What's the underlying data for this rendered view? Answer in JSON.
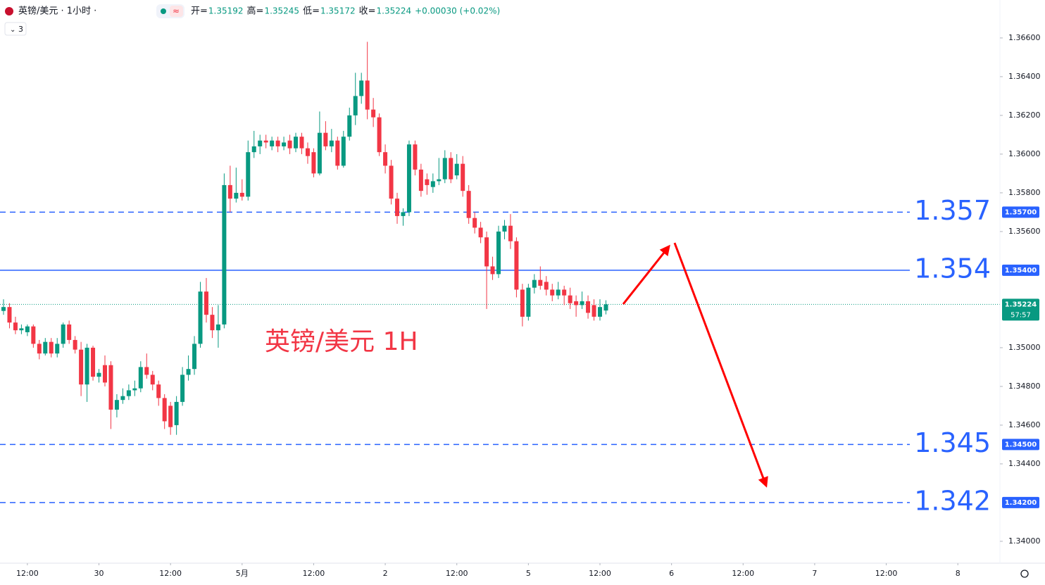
{
  "header": {
    "symbol": "英镑/美元 · 1小时 ·",
    "indicator_count": "3",
    "indicator_icon": "≈",
    "readout": [
      {
        "label": "开=",
        "value": "1.35192"
      },
      {
        "label": "高=",
        "value": "1.35245"
      },
      {
        "label": "低=",
        "value": "1.35172"
      },
      {
        "label": "收=",
        "value": "1.35224"
      }
    ],
    "change": "+0.00030 (+0.02%)"
  },
  "chart_data": {
    "type": "candlestick",
    "annotation": "英镑/美元 1H",
    "up_color": "#089981",
    "down_color": "#f23645",
    "xlim": [
      -0.59,
      167.06
    ],
    "ylim": [
      1.33887,
      1.36796
    ],
    "xticks": [
      {
        "value": 4,
        "label": "12:00"
      },
      {
        "value": 16,
        "label": "30"
      },
      {
        "value": 28,
        "label": "12:00"
      },
      {
        "value": 40,
        "label": "5月"
      },
      {
        "value": 52,
        "label": "12:00"
      },
      {
        "value": 64,
        "label": "2"
      },
      {
        "value": 76,
        "label": "12:00"
      },
      {
        "value": 88,
        "label": "5"
      },
      {
        "value": 100,
        "label": "12:00"
      },
      {
        "value": 112,
        "label": "6"
      },
      {
        "value": 124,
        "label": "12:00"
      },
      {
        "value": 136,
        "label": "7"
      },
      {
        "value": 148,
        "label": "12:00"
      },
      {
        "value": 160,
        "label": "8"
      }
    ],
    "yticks": [
      {
        "value": 1.366,
        "label": "1.36600"
      },
      {
        "value": 1.364,
        "label": "1.36400"
      },
      {
        "value": 1.362,
        "label": "1.36200"
      },
      {
        "value": 1.36,
        "label": "1.36000"
      },
      {
        "value": 1.358,
        "label": "1.35800"
      },
      {
        "value": 1.356,
        "label": "1.35600"
      },
      {
        "value": 1.35,
        "label": "1.35000"
      },
      {
        "value": 1.348,
        "label": "1.34800"
      },
      {
        "value": 1.346,
        "label": "1.34600"
      },
      {
        "value": 1.344,
        "label": "1.34400"
      },
      {
        "value": 1.34,
        "label": "1.34000"
      }
    ],
    "levels": [
      {
        "value": 1.357,
        "label": "1.35700",
        "style": "dashed",
        "color": "#2962ff"
      },
      {
        "value": 1.354,
        "label": "1.35400",
        "style": "solid",
        "color": "#2962ff"
      },
      {
        "value": 1.345,
        "label": "1.34500",
        "style": "dashed",
        "color": "#2962ff"
      },
      {
        "value": 1.342,
        "label": "1.34200",
        "style": "dashed",
        "color": "#2962ff"
      }
    ],
    "current_price": {
      "value": 1.35224,
      "label": "1.35224",
      "countdown": "57:57",
      "color": "#089981"
    },
    "ohlc": [
      [
        1.3519,
        1.3525,
        1.3517,
        1.3521
      ],
      [
        1.3521,
        1.3523,
        1.351,
        1.3513
      ],
      [
        1.3513,
        1.3516,
        1.3507,
        1.3509
      ],
      [
        1.3509,
        1.3512,
        1.3507,
        1.351
      ],
      [
        1.3508,
        1.3512,
        1.3506,
        1.3511
      ],
      [
        1.3511,
        1.3512,
        1.35,
        1.3502
      ],
      [
        1.3502,
        1.3504,
        1.3494,
        1.3497
      ],
      [
        1.3497,
        1.3505,
        1.3496,
        1.3503
      ],
      [
        1.3503,
        1.3505,
        1.3495,
        1.3497
      ],
      [
        1.3497,
        1.3505,
        1.3495,
        1.3502
      ],
      [
        1.3502,
        1.3513,
        1.35,
        1.3512
      ],
      [
        1.3512,
        1.3514,
        1.3502,
        1.3504
      ],
      [
        1.3504,
        1.3506,
        1.3497,
        1.3499
      ],
      [
        1.3499,
        1.3503,
        1.3475,
        1.3481
      ],
      [
        1.3481,
        1.3502,
        1.3472,
        1.35
      ],
      [
        1.35,
        1.3501,
        1.3483,
        1.3485
      ],
      [
        1.3485,
        1.3489,
        1.3482,
        1.3487
      ],
      [
        1.3491,
        1.3496,
        1.348,
        1.3482
      ],
      [
        1.3491,
        1.3493,
        1.3458,
        1.3468
      ],
      [
        1.3468,
        1.3476,
        1.3464,
        1.3473
      ],
      [
        1.3473,
        1.3479,
        1.3471,
        1.3475
      ],
      [
        1.3475,
        1.3481,
        1.3473,
        1.3478
      ],
      [
        1.3478,
        1.3483,
        1.3475,
        1.3479
      ],
      [
        1.3479,
        1.3493,
        1.3477,
        1.349
      ],
      [
        1.349,
        1.3497,
        1.3484,
        1.3486
      ],
      [
        1.3486,
        1.3488,
        1.3478,
        1.3481
      ],
      [
        1.3481,
        1.3483,
        1.347,
        1.3474
      ],
      [
        1.3474,
        1.3476,
        1.3458,
        1.3462
      ],
      [
        1.347,
        1.3472,
        1.3455,
        1.3459
      ],
      [
        1.346,
        1.3475,
        1.3455,
        1.3472
      ],
      [
        1.3472,
        1.349,
        1.347,
        1.3486
      ],
      [
        1.3486,
        1.3496,
        1.3483,
        1.3489
      ],
      [
        1.3489,
        1.3506,
        1.3486,
        1.3502
      ],
      [
        1.3502,
        1.3534,
        1.35,
        1.3529
      ],
      [
        1.3529,
        1.3536,
        1.3513,
        1.3517
      ],
      [
        1.3517,
        1.3521,
        1.3505,
        1.3509
      ],
      [
        1.3509,
        1.3522,
        1.35,
        1.3512
      ],
      [
        1.3512,
        1.359,
        1.351,
        1.3584
      ],
      [
        1.3584,
        1.3594,
        1.357,
        1.3577
      ],
      [
        1.3577,
        1.3593,
        1.3575,
        1.358
      ],
      [
        1.358,
        1.3587,
        1.3576,
        1.3578
      ],
      [
        1.3578,
        1.3607,
        1.3576,
        1.3601
      ],
      [
        1.3601,
        1.3612,
        1.3598,
        1.3604
      ],
      [
        1.3604,
        1.361,
        1.36,
        1.3607
      ],
      [
        1.3607,
        1.361,
        1.3603,
        1.3606
      ],
      [
        1.3604,
        1.3609,
        1.3602,
        1.3607
      ],
      [
        1.3607,
        1.3609,
        1.3601,
        1.3604
      ],
      [
        1.3604,
        1.3609,
        1.3602,
        1.3606
      ],
      [
        1.3607,
        1.361,
        1.36,
        1.3603
      ],
      [
        1.3603,
        1.3611,
        1.3601,
        1.3609
      ],
      [
        1.3609,
        1.3611,
        1.36,
        1.3603
      ],
      [
        1.3603,
        1.3606,
        1.3595,
        1.3599
      ],
      [
        1.3601,
        1.3603,
        1.3588,
        1.359
      ],
      [
        1.359,
        1.3622,
        1.3589,
        1.3611
      ],
      [
        1.3611,
        1.3617,
        1.3602,
        1.3604
      ],
      [
        1.3604,
        1.3613,
        1.3601,
        1.3607
      ],
      [
        1.3607,
        1.3609,
        1.3592,
        1.3594
      ],
      [
        1.3594,
        1.3612,
        1.3593,
        1.3609
      ],
      [
        1.3609,
        1.3624,
        1.3607,
        1.362
      ],
      [
        1.362,
        1.3642,
        1.3615,
        1.363
      ],
      [
        1.363,
        1.3642,
        1.3626,
        1.3638
      ],
      [
        1.3638,
        1.3658,
        1.3618,
        1.3623
      ],
      [
        1.3623,
        1.3629,
        1.3614,
        1.3619
      ],
      [
        1.3619,
        1.3621,
        1.3599,
        1.3601
      ],
      [
        1.3601,
        1.3605,
        1.359,
        1.3594
      ],
      [
        1.3594,
        1.3597,
        1.3574,
        1.3577
      ],
      [
        1.3577,
        1.358,
        1.3564,
        1.3568
      ],
      [
        1.3568,
        1.3572,
        1.3563,
        1.357
      ],
      [
        1.357,
        1.3607,
        1.3568,
        1.3605
      ],
      [
        1.3605,
        1.3607,
        1.3589,
        1.3592
      ],
      [
        1.3592,
        1.3595,
        1.3578,
        1.3581
      ],
      [
        1.3587,
        1.359,
        1.3579,
        1.3584
      ],
      [
        1.3583,
        1.359,
        1.358,
        1.3586
      ],
      [
        1.3586,
        1.3598,
        1.3584,
        1.3587
      ],
      [
        1.3587,
        1.3602,
        1.3585,
        1.3598
      ],
      [
        1.3598,
        1.3601,
        1.3585,
        1.3587
      ],
      [
        1.3589,
        1.36,
        1.3587,
        1.3595
      ],
      [
        1.3595,
        1.3599,
        1.3578,
        1.3581
      ],
      [
        1.3581,
        1.3584,
        1.3564,
        1.3567
      ],
      [
        1.3567,
        1.357,
        1.3559,
        1.3562
      ],
      [
        1.3562,
        1.3565,
        1.3554,
        1.3557
      ],
      [
        1.3557,
        1.356,
        1.352,
        1.3542
      ],
      [
        1.3542,
        1.3547,
        1.3535,
        1.3538
      ],
      [
        1.3538,
        1.3563,
        1.3536,
        1.356
      ],
      [
        1.356,
        1.3566,
        1.3556,
        1.3563
      ],
      [
        1.3563,
        1.3569,
        1.3551,
        1.3555
      ],
      [
        1.3555,
        1.3557,
        1.3526,
        1.353
      ],
      [
        1.353,
        1.3533,
        1.3511,
        1.3516
      ],
      [
        1.3516,
        1.3533,
        1.3514,
        1.3531
      ],
      [
        1.3531,
        1.3538,
        1.3528,
        1.3535
      ],
      [
        1.3535,
        1.3542,
        1.353,
        1.3532
      ],
      [
        1.3534,
        1.3537,
        1.3527,
        1.353
      ],
      [
        1.353,
        1.3533,
        1.3524,
        1.3527
      ],
      [
        1.3527,
        1.3534,
        1.3525,
        1.353
      ],
      [
        1.353,
        1.3532,
        1.3522,
        1.3527
      ],
      [
        1.3527,
        1.3531,
        1.352,
        1.3523
      ],
      [
        1.3524,
        1.3527,
        1.3516,
        1.3522
      ],
      [
        1.3522,
        1.3529,
        1.352,
        1.3524
      ],
      [
        1.3524,
        1.3527,
        1.3515,
        1.3518
      ],
      [
        1.3522,
        1.3525,
        1.3514,
        1.3516
      ],
      [
        1.3516,
        1.3525,
        1.3514,
        1.3521
      ],
      [
        1.35192,
        1.35245,
        1.35172,
        1.35224
      ]
    ]
  }
}
